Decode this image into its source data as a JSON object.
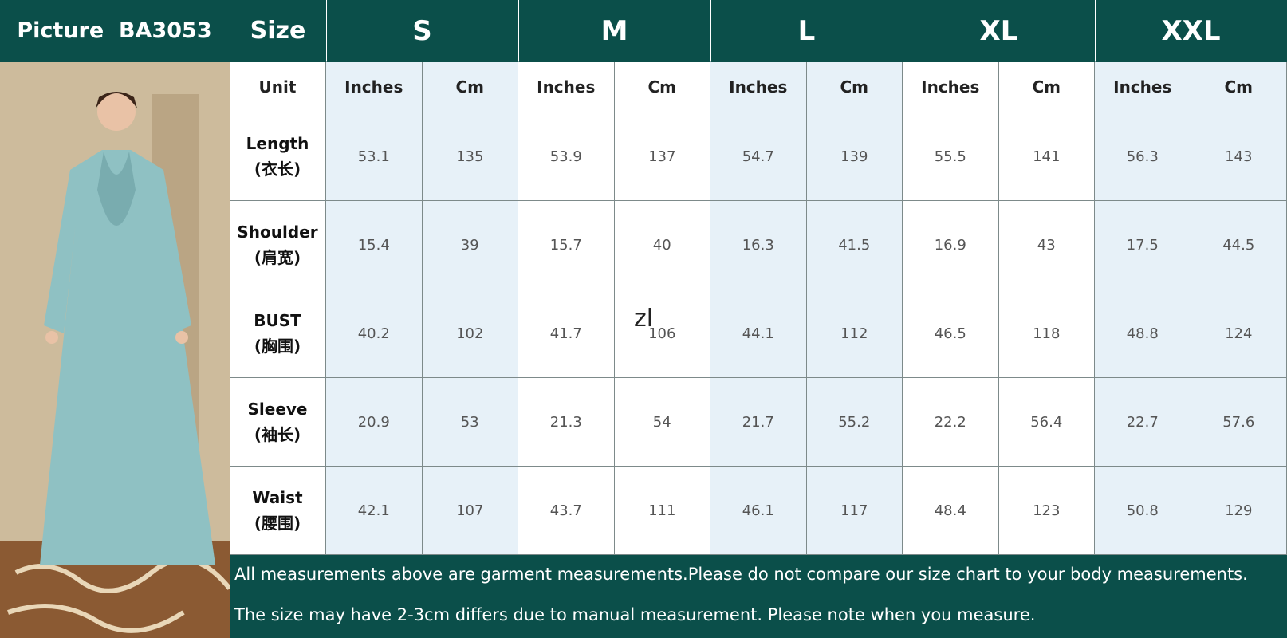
{
  "header": {
    "picture": "Picture  BA3053",
    "size": "Size",
    "sizes": [
      "S",
      "M",
      "L",
      "XL",
      "XXL"
    ]
  },
  "unit_row": {
    "label": "Unit",
    "units": [
      "Inches",
      "Cm",
      "Inches",
      "Cm",
      "Inches",
      "Cm",
      "Inches",
      "Cm",
      "Inches",
      "Cm"
    ]
  },
  "rows": [
    {
      "name": "Length",
      "name_cn": "(衣长)",
      "values": [
        53.1,
        135,
        53.9,
        137,
        54.7,
        139,
        55.5,
        141,
        56.3,
        143
      ]
    },
    {
      "name": "Shoulder",
      "name_cn": "(肩宽)",
      "values": [
        15.4,
        39,
        15.7,
        40,
        16.3,
        41.5,
        16.9,
        43,
        17.5,
        44.5
      ]
    },
    {
      "name": "BUST",
      "name_cn": "(胸围)",
      "values": [
        40.2,
        102,
        41.7,
        106,
        44.1,
        112,
        46.5,
        118,
        48.8,
        124
      ]
    },
    {
      "name": "Sleeve",
      "name_cn": "(袖长)",
      "values": [
        20.9,
        53,
        21.3,
        54,
        21.7,
        55.2,
        22.2,
        56.4,
        22.7,
        57.6
      ]
    },
    {
      "name": "Waist",
      "name_cn": "(腰围)",
      "values": [
        42.1,
        107,
        43.7,
        111,
        46.1,
        117,
        48.4,
        123,
        50.8,
        129
      ]
    }
  ],
  "notes": [
    "All measurements above are garment measurements.Please do not compare our size chart to your body measurements.",
    "The size may have 2-3cm differs due to manual measurement. Please note when you measure."
  ],
  "watermark": "zl"
}
